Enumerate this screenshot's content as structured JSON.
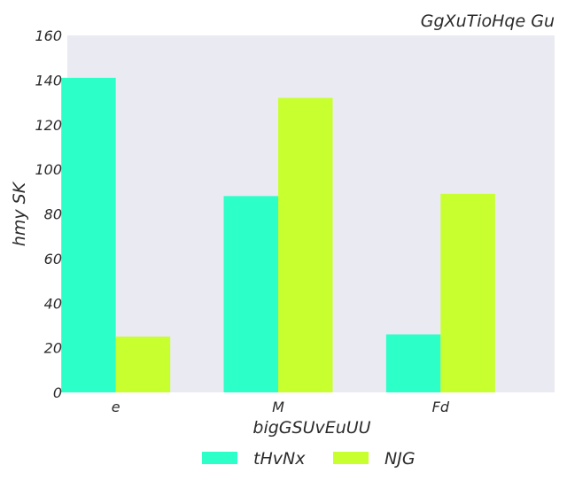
{
  "chart_data": {
    "type": "bar",
    "title": "GgXuTioHqe Gu",
    "xlabel": "bigGSUvEuUU",
    "ylabel": "hmy SK",
    "categories": [
      "e",
      "M",
      "Fd"
    ],
    "series": [
      {
        "name": "tHvNx",
        "values": [
          141,
          88,
          26
        ],
        "color": "#2cffc8"
      },
      {
        "name": "NJG",
        "values": [
          25,
          132,
          89
        ],
        "color": "#c8ff2e"
      }
    ],
    "ylim": [
      0,
      160
    ],
    "yticks": [
      0,
      20,
      40,
      60,
      80,
      100,
      120,
      140,
      160
    ],
    "grid": false,
    "legend_position": "bottom-center",
    "plot_background": "#eaeaf2"
  }
}
